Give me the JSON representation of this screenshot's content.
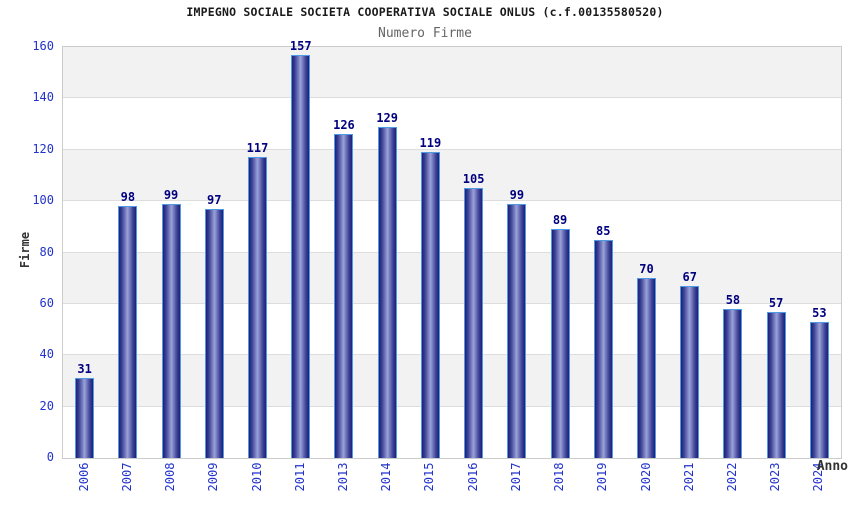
{
  "chart_data": {
    "type": "bar",
    "title": "IMPEGNO SOCIALE SOCIETA COOPERATIVA SOCIALE ONLUS (c.f.00135580520)",
    "subtitle": "Numero Firme",
    "xlabel": "Anno",
    "ylabel": "Firme",
    "categories": [
      "2006",
      "2007",
      "2008",
      "2009",
      "2010",
      "2011",
      "2013",
      "2014",
      "2015",
      "2016",
      "2017",
      "2018",
      "2019",
      "2020",
      "2021",
      "2022",
      "2023",
      "2024"
    ],
    "values": [
      31,
      98,
      99,
      97,
      117,
      157,
      126,
      129,
      119,
      105,
      99,
      89,
      85,
      70,
      67,
      58,
      57,
      53
    ],
    "ylim": [
      0,
      160
    ],
    "ytick_step": 20,
    "yticks": [
      0,
      20,
      40,
      60,
      80,
      100,
      120,
      140,
      160
    ],
    "grid": "horizontal-bands-alternating",
    "legend": "none",
    "colors": {
      "bar_edge_dark": "#1f2077",
      "bar_mid": "#3c4296",
      "bar_center_light": "#9ba2d8",
      "bar_outline": "#4f9ae4",
      "value_label": "#000080",
      "tick_label": "#2233cc",
      "axis_label": "#333333",
      "title": "#1a1a1a",
      "subtitle": "#666666",
      "band_gray": "#f2f2f2",
      "band_white": "#ffffff",
      "gridline": "#dddddd",
      "plot_border": "#cccccc",
      "background": "#ffffff"
    }
  }
}
